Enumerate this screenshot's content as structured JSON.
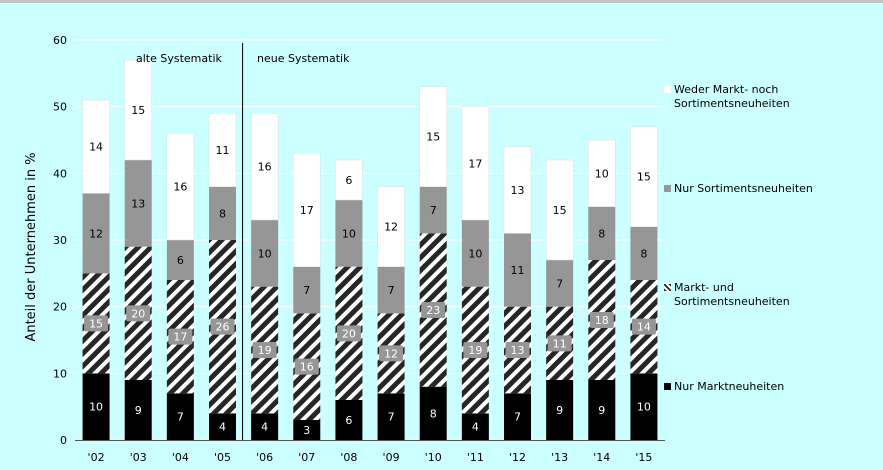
{
  "chart_data": {
    "type": "bar",
    "stacked": true,
    "categories": [
      "'02",
      "'03",
      "'04",
      "'05",
      "'06",
      "'07",
      "'08",
      "'09",
      "'10",
      "'11",
      "'12",
      "'13",
      "'14",
      "'15"
    ],
    "ylabel": "Anteil der Unternehmen in %",
    "xlabel": "",
    "ylim": [
      0,
      60
    ],
    "yticks": [
      0,
      10,
      20,
      30,
      40,
      50,
      60
    ],
    "grid": true,
    "legend_position": "right",
    "annotations": [
      {
        "text": "alte Systematik"
      },
      {
        "text": "neue Systematik"
      }
    ],
    "series": [
      {
        "name": "Nur Marktneuheiten",
        "color": "#000000",
        "pattern": "solid",
        "values": [
          10,
          9,
          7,
          4,
          4,
          3,
          6,
          7,
          8,
          4,
          7,
          9,
          9,
          10
        ]
      },
      {
        "name": "Markt- und\nSortimentsneuheiten",
        "color": "#404040",
        "pattern": "hatch",
        "values": [
          15,
          20,
          17,
          26,
          19,
          16,
          20,
          12,
          23,
          19,
          13,
          11,
          18,
          14
        ]
      },
      {
        "name": "Nur Sortimentsneuheiten",
        "color": "#969696",
        "pattern": "solid",
        "values": [
          12,
          13,
          6,
          8,
          10,
          7,
          10,
          7,
          7,
          10,
          11,
          7,
          8,
          8
        ]
      },
      {
        "name": "Weder Markt- noch\nSortimentsneuheiten",
        "color": "#ffffff",
        "pattern": "solid",
        "values": [
          14,
          15,
          16,
          11,
          16,
          17,
          6,
          12,
          15,
          17,
          13,
          15,
          10,
          15
        ]
      }
    ]
  }
}
